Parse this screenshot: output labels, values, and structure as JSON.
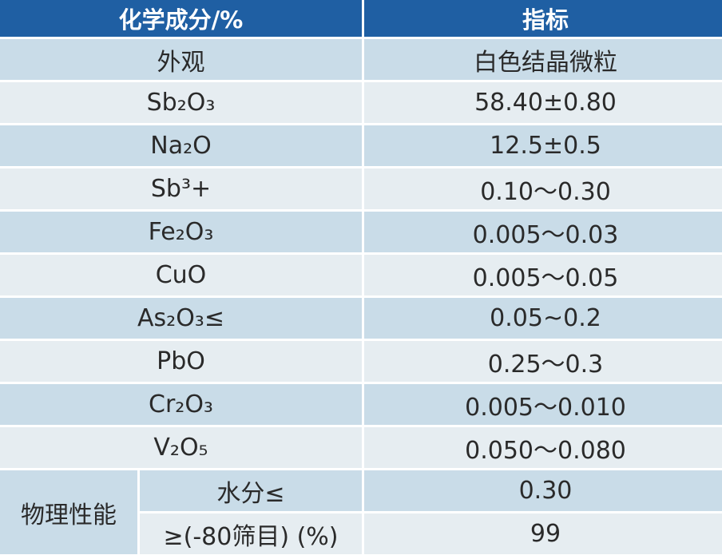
{
  "header": [
    "化学成分/%",
    "指标"
  ],
  "rows": [
    [
      "外观",
      "白色结晶微粒"
    ],
    [
      "Sb₂O₃",
      "58.40±0.80"
    ],
    [
      "Na₂O",
      "12.5±0.5"
    ],
    [
      "Sb³+",
      "0.10～0.30"
    ],
    [
      "Fe₂O₃",
      "0.005～0.03"
    ],
    [
      "CuO",
      "0.005～0.05"
    ],
    [
      "As₂O₃≤",
      "0.05~0.2"
    ],
    [
      "PbO",
      "0.25～0.3"
    ],
    [
      "Cr₂O₃",
      "0.005～0.010"
    ],
    [
      "V₂O₅",
      "0.050～0.080"
    ]
  ],
  "physical": {
    "label": "物理性能",
    "rows": [
      [
        "水分≤",
        "0.30"
      ],
      [
        "≥(-80筛目) (%)",
        "99"
      ]
    ]
  }
}
